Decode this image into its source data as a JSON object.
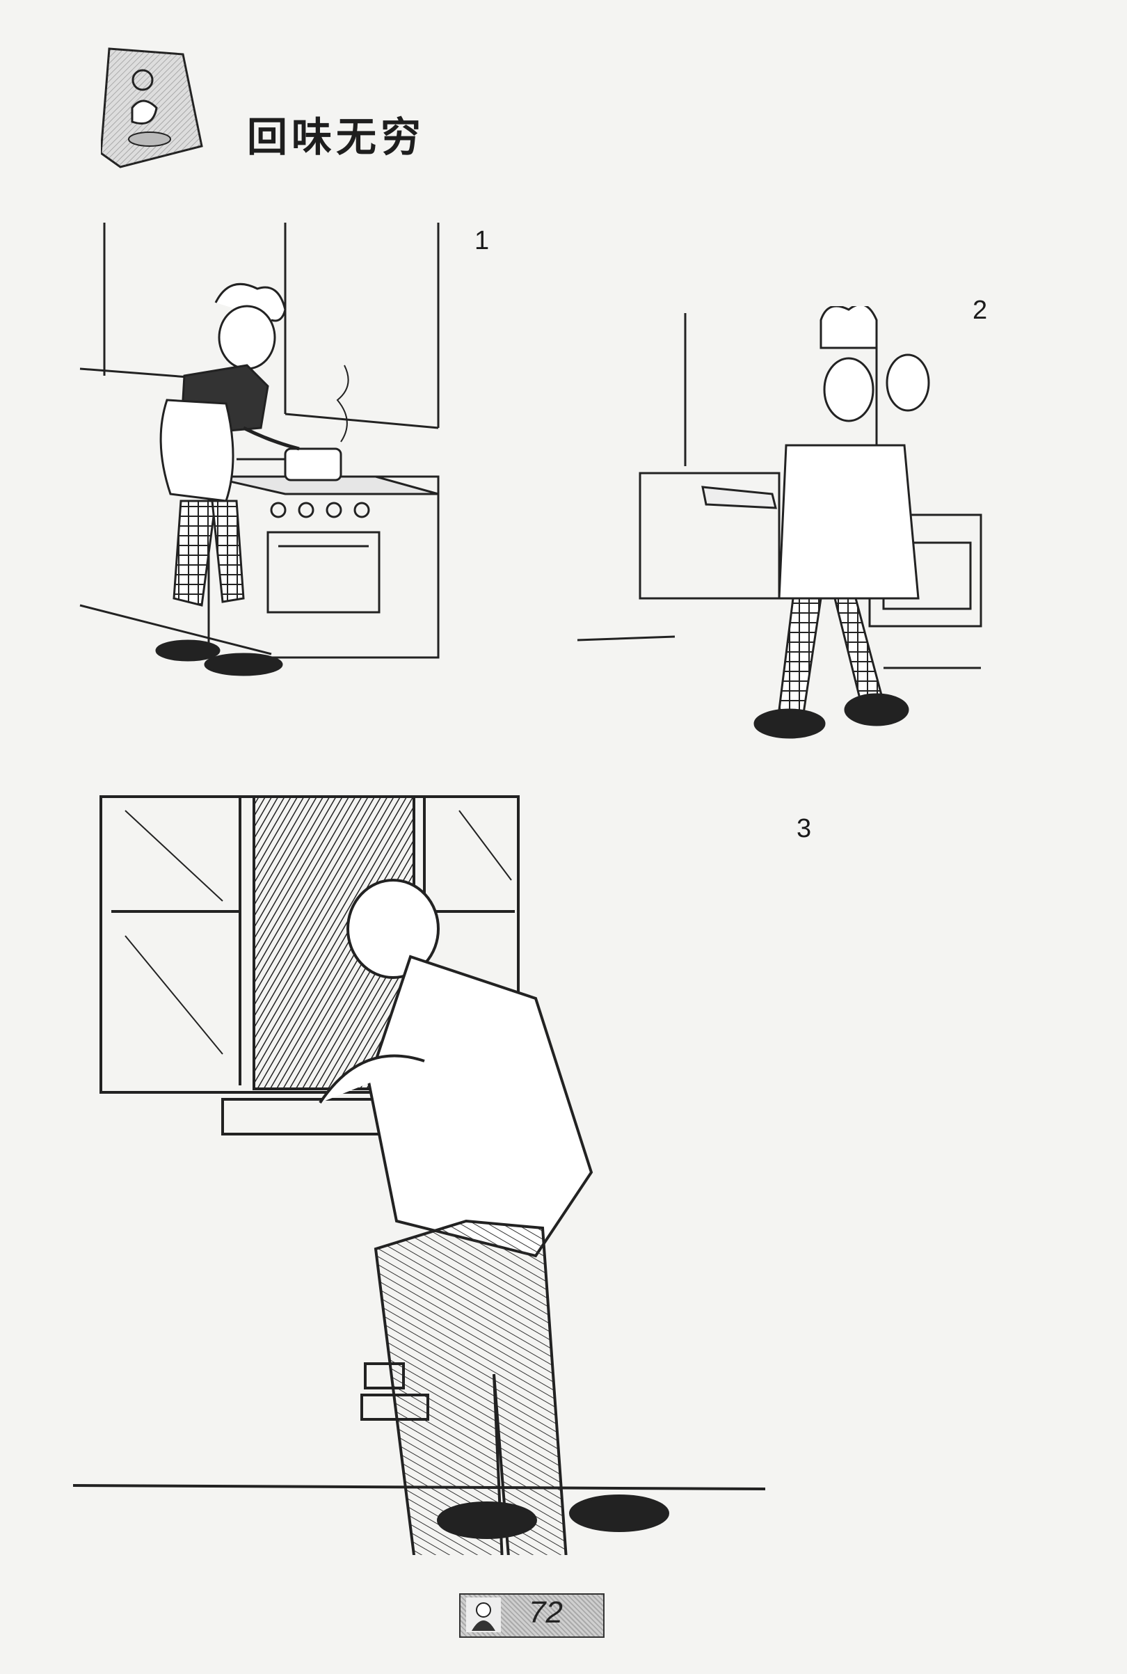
{
  "title": "回味无穷",
  "panels": [
    {
      "number": "1"
    },
    {
      "number": "2"
    },
    {
      "number": "3"
    }
  ],
  "page_number": "72",
  "icons": [
    "comic-logo-icon",
    "page-number-portrait-icon"
  ],
  "colors": {
    "ink": "#1e1e1e",
    "paper": "#f4f4f2"
  }
}
